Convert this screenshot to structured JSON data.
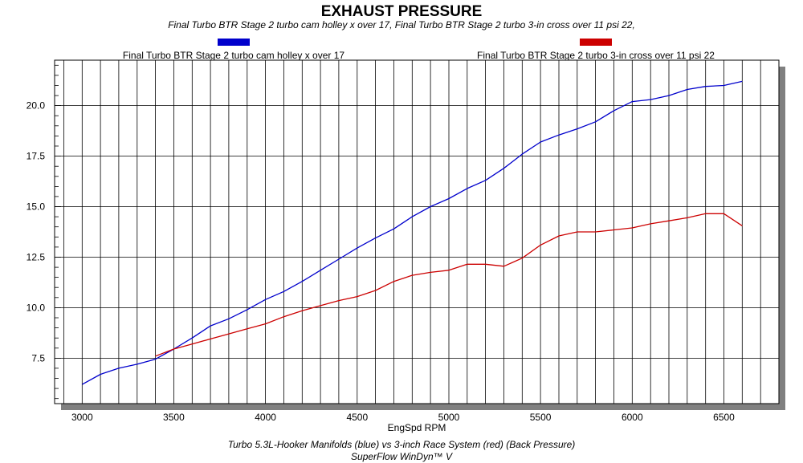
{
  "chart_data": {
    "type": "line",
    "title": "EXHAUST PRESSURE",
    "subtitle": "Final Turbo BTR Stage 2 turbo cam holley x over 17, Final Turbo BTR Stage 2 turbo 3-in cross over 11 psi 22,",
    "xlabel": "EngSpd RPM",
    "ylabel": "",
    "xlim": [
      2850,
      6800
    ],
    "ylim": [
      5.25,
      22.25
    ],
    "x_ticks": [
      3000,
      3500,
      4000,
      4500,
      5000,
      5500,
      6000,
      6500
    ],
    "y_ticks": [
      7.5,
      10.0,
      12.5,
      15.0,
      17.5,
      20.0
    ],
    "x_tick_labels": [
      "3000",
      "3500",
      "4000",
      "4500",
      "5000",
      "5500",
      "6000",
      "6500"
    ],
    "y_tick_labels": [
      "7.5",
      "10.0",
      "12.5",
      "15.0",
      "17.5",
      "20.0"
    ],
    "grid": true,
    "legend_position": "top",
    "series": [
      {
        "name": "Final Turbo BTR Stage 2 turbo cam holley x over 17",
        "color": "#0000cc",
        "x": [
          3000,
          3100,
          3200,
          3300,
          3400,
          3500,
          3600,
          3700,
          3800,
          3900,
          4000,
          4100,
          4200,
          4300,
          4400,
          4500,
          4600,
          4700,
          4800,
          4900,
          5000,
          5100,
          5200,
          5300,
          5400,
          5500,
          5600,
          5700,
          5800,
          5900,
          6000,
          6100,
          6200,
          6300,
          6400,
          6500,
          6600
        ],
        "values": [
          6.2,
          6.7,
          7.0,
          7.2,
          7.45,
          7.95,
          8.5,
          9.1,
          9.45,
          9.9,
          10.4,
          10.8,
          11.3,
          11.85,
          12.4,
          12.95,
          13.45,
          13.9,
          14.5,
          15.0,
          15.4,
          15.9,
          16.3,
          16.9,
          17.6,
          18.2,
          18.55,
          18.85,
          19.2,
          19.75,
          20.2,
          20.3,
          20.5,
          20.8,
          20.95,
          21.0,
          21.2
        ]
      },
      {
        "name": "Final Turbo BTR Stage 2 turbo 3-in cross over 11 psi 22",
        "color": "#cc0000",
        "x": [
          3400,
          3500,
          3600,
          3700,
          3800,
          3900,
          4000,
          4100,
          4200,
          4300,
          4400,
          4500,
          4600,
          4700,
          4800,
          4900,
          5000,
          5100,
          5200,
          5300,
          5400,
          5500,
          5600,
          5700,
          5800,
          5900,
          6000,
          6100,
          6200,
          6300,
          6400,
          6500,
          6600
        ],
        "values": [
          7.6,
          7.95,
          8.2,
          8.45,
          8.7,
          8.95,
          9.2,
          9.55,
          9.85,
          10.1,
          10.35,
          10.55,
          10.85,
          11.3,
          11.6,
          11.75,
          11.85,
          12.15,
          12.15,
          12.05,
          12.45,
          13.1,
          13.55,
          13.75,
          13.75,
          13.85,
          13.95,
          14.15,
          14.3,
          14.45,
          14.65,
          14.65,
          14.05
        ]
      }
    ]
  },
  "footer": {
    "caption": "Turbo 5.3L-Hooker Manifolds (blue) vs 3-inch Race System (red) (Back Pressure)",
    "software": "SuperFlow WinDyn™ V"
  }
}
